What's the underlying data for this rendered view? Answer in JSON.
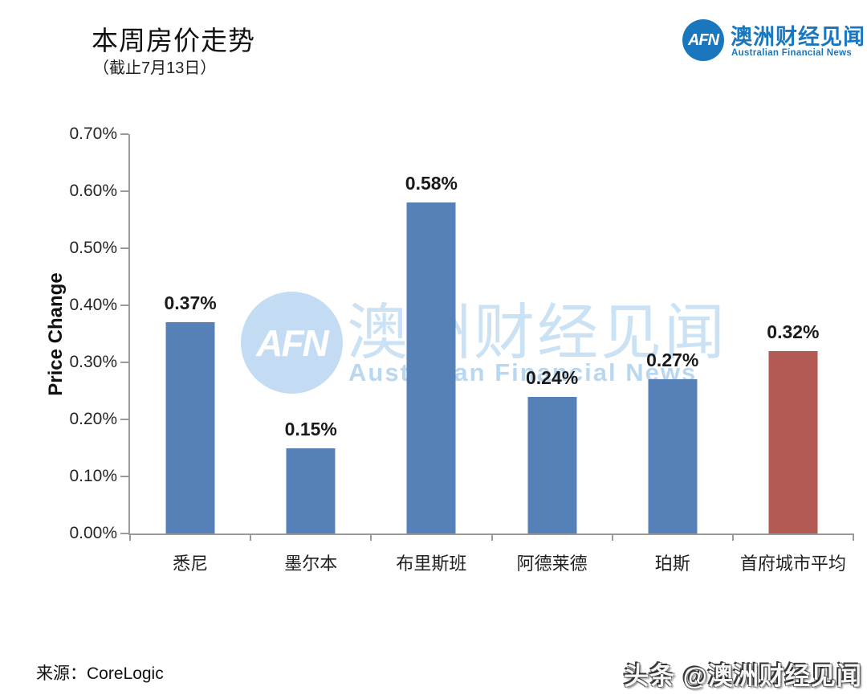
{
  "header": {
    "title": "本周房价走势",
    "subtitle": "（截止7月13日）"
  },
  "brand": {
    "abbr": "AFN",
    "name_cn": "澳洲财经见闻",
    "name_en": "Australian Financial News",
    "color": "#1a77be"
  },
  "chart_data": {
    "type": "bar",
    "title": "本周房价走势（截止7月13日）",
    "xlabel": "",
    "ylabel": "Price Change",
    "categories": [
      "悉尼",
      "墨尔本",
      "布里斯班",
      "阿德莱德",
      "珀斯",
      "首府城市平均"
    ],
    "values": [
      0.37,
      0.15,
      0.58,
      0.24,
      0.27,
      0.32
    ],
    "data_labels": [
      "0.37%",
      "0.15%",
      "0.58%",
      "0.24%",
      "0.27%",
      "0.32%"
    ],
    "ylim": [
      0,
      0.7
    ],
    "ytick_labels": [
      "0.00%",
      "0.10%",
      "0.20%",
      "0.30%",
      "0.40%",
      "0.50%",
      "0.60%",
      "0.70%"
    ],
    "grid": false,
    "legend_position": "none",
    "bar_color_default": "#5580b8",
    "bar_color_highlight": "#b35a55",
    "highlight_index": 5,
    "axis_color": "#9a9a9a"
  },
  "watermark_center": {
    "abbr": "AFN",
    "name_cn": "澳洲财经见闻",
    "name_en": "Australian Financial News",
    "color": "#c7dff3"
  },
  "footer": {
    "source": "来源：CoreLogic",
    "credit": "头条 @澳洲财经见闻"
  }
}
